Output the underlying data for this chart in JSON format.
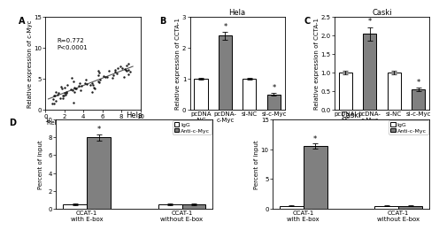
{
  "panel_A": {
    "xlabel": "Relative expression of CCAT-1",
    "ylabel": "Relative expression of c-Myc",
    "xlim": [
      0,
      10
    ],
    "ylim": [
      0,
      15
    ],
    "xticks": [
      0,
      2,
      4,
      6,
      8,
      10
    ],
    "yticks": [
      0,
      5,
      10,
      15
    ],
    "annotation": "R=0.772\nP<0.0001",
    "scatter_color": "#1a1a1a",
    "line_color": "#555555"
  },
  "panel_B": {
    "panel_label": "B",
    "title": "Hela",
    "ylabel": "Relative expression of CCTA-1",
    "categories": [
      "pcDNA\n-NC",
      "pcDNA-\nc-Myc",
      "si-NC",
      "si-c-Myc"
    ],
    "values": [
      1.0,
      2.4,
      1.0,
      0.5
    ],
    "errors": [
      0.04,
      0.13,
      0.04,
      0.04
    ],
    "colors": [
      "#ffffff",
      "#808080",
      "#ffffff",
      "#808080"
    ],
    "ylim": [
      0,
      3
    ],
    "yticks": [
      0,
      1,
      2,
      3
    ],
    "significance": [
      false,
      true,
      false,
      true
    ]
  },
  "panel_C": {
    "panel_label": "C",
    "title": "Caski",
    "ylabel": "Relative expression of CCTA-1",
    "categories": [
      "pcDNA-\nNC",
      "pcDNA-\nc-Myc",
      "si-NC",
      "si-c-Myc"
    ],
    "values": [
      1.0,
      2.05,
      1.0,
      0.55
    ],
    "errors": [
      0.04,
      0.18,
      0.04,
      0.04
    ],
    "colors": [
      "#ffffff",
      "#808080",
      "#ffffff",
      "#808080"
    ],
    "ylim": [
      0.0,
      2.5
    ],
    "yticks": [
      0.0,
      0.5,
      1.0,
      1.5,
      2.0,
      2.5
    ],
    "significance": [
      false,
      true,
      false,
      true
    ]
  },
  "panel_D1": {
    "panel_label": "D",
    "title": "Hela",
    "ylabel": "Percent of input",
    "group_labels": [
      "CCAT-1\nwith E-box",
      "CCAT-1\nwithout E-box"
    ],
    "igg_values": [
      0.5,
      0.5
    ],
    "anti_values": [
      8.0,
      0.5
    ],
    "igg_errors": [
      0.1,
      0.1
    ],
    "anti_errors": [
      0.35,
      0.1
    ],
    "ylim": [
      0,
      10
    ],
    "yticks": [
      0,
      2,
      4,
      6,
      8,
      10
    ],
    "significance": [
      true,
      false
    ]
  },
  "panel_D2": {
    "title": "Caski",
    "ylabel": "Percent of input",
    "group_labels": [
      "CCAT-1\nwith E-box",
      "CCAT-1\nwithout E-box"
    ],
    "igg_values": [
      0.5,
      0.5
    ],
    "anti_values": [
      10.5,
      0.5
    ],
    "igg_errors": [
      0.1,
      0.1
    ],
    "anti_errors": [
      0.45,
      0.1
    ],
    "ylim": [
      0,
      15
    ],
    "yticks": [
      0,
      5,
      10,
      15
    ],
    "significance": [
      true,
      false
    ]
  },
  "legend_igg": "IgG",
  "legend_anti": "Anti-c-Myc",
  "bar_edge_color": "#000000",
  "bar_linewidth": 0.7,
  "font_size": 5,
  "title_font_size": 6,
  "panel_label_font_size": 7
}
